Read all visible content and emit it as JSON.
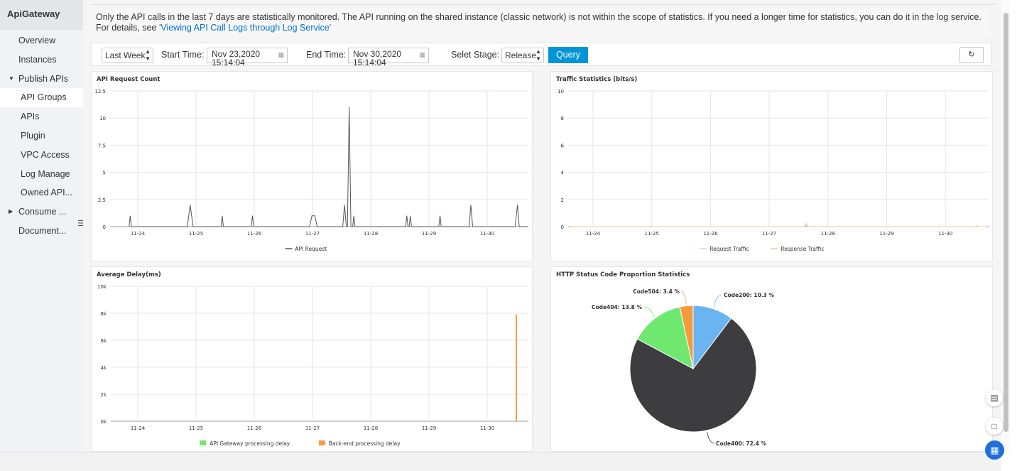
{
  "sidebar": {
    "title": "ApiGateway",
    "items": [
      {
        "label": "Overview"
      },
      {
        "label": "Instances"
      },
      {
        "label": "Publish APIs"
      },
      {
        "label": "API Groups"
      },
      {
        "label": "APIs"
      },
      {
        "label": "Plugin"
      },
      {
        "label": "VPC Access"
      },
      {
        "label": "Log Manage"
      },
      {
        "label": "Owned API..."
      },
      {
        "label": "Consume ..."
      },
      {
        "label": "Document..."
      }
    ]
  },
  "notice": {
    "text": "Only the API calls in the last 7 days are statistically monitored. The API running on the shared instance (classic network) is not within the scope of statistics. If you need a longer time for statistics, you can do it in the log service. For details, see ",
    "link": "'Viewing API Call Logs through Log Service'"
  },
  "toolbar": {
    "range": "Last Week",
    "start_label": "Start Time:",
    "start_date": "Nov 23,2020",
    "start_time": "15:14:04",
    "end_label": "End Time:",
    "end_date": "Nov 30,2020",
    "end_time": "15:14:04",
    "stage_label": "Selet Stage:",
    "stage": "Release",
    "query": "Query"
  },
  "icons": {
    "refresh": "refresh-icon",
    "calendar": "calendar-icon",
    "collapse": "collapse-icon",
    "feedback": "feedback-icon",
    "chat": "chat-icon",
    "apps": "apps-icon"
  },
  "colors": {
    "accent": "#0095d9",
    "api_request": "#555555",
    "request_traffic": "#b5e9b5",
    "response_traffic": "#f5c89a",
    "gw_delay": "#6ee86e",
    "backend_delay": "#ff9a3c",
    "code200": "#6bb4f2",
    "code400": "#3d3d40",
    "code404": "#6ee86e",
    "code504": "#f59a3c"
  },
  "chart_data": [
    {
      "type": "line",
      "title": "API Request Count",
      "x_ticks": [
        "11-24",
        "11-25",
        "11-26",
        "11-27",
        "11-28",
        "11-29",
        "11-30"
      ],
      "y_ticks": [
        "0",
        "2.5",
        "5",
        "7.5",
        "10",
        "12.5"
      ],
      "ylim": [
        0,
        12.5
      ],
      "series": [
        {
          "name": "API Request",
          "points": [
            [
              -0.15,
              0
            ],
            [
              -0.13,
              1
            ],
            [
              -0.11,
              0
            ],
            [
              0.85,
              0
            ],
            [
              0.9,
              2
            ],
            [
              0.95,
              0
            ],
            [
              1.43,
              0
            ],
            [
              1.45,
              1
            ],
            [
              1.47,
              0
            ],
            [
              1.95,
              0
            ],
            [
              1.97,
              1
            ],
            [
              1.99,
              0
            ],
            [
              2.95,
              0
            ],
            [
              2.99,
              1
            ],
            [
              3.04,
              1
            ],
            [
              3.08,
              0
            ],
            [
              3.52,
              0
            ],
            [
              3.55,
              2
            ],
            [
              3.58,
              0
            ],
            [
              3.6,
              0
            ],
            [
              3.63,
              11
            ],
            [
              3.66,
              0
            ],
            [
              3.69,
              0
            ],
            [
              3.71,
              1
            ],
            [
              3.73,
              0
            ],
            [
              4.6,
              0
            ],
            [
              4.62,
              1
            ],
            [
              4.64,
              0
            ],
            [
              4.66,
              0
            ],
            [
              4.68,
              1
            ],
            [
              4.7,
              0
            ],
            [
              5.17,
              0
            ],
            [
              5.19,
              1
            ],
            [
              5.21,
              0
            ],
            [
              5.69,
              0
            ],
            [
              5.72,
              2
            ],
            [
              5.75,
              0
            ],
            [
              6.48,
              0
            ],
            [
              6.52,
              2
            ],
            [
              6.55,
              0
            ],
            [
              6.7,
              0
            ]
          ]
        }
      ]
    },
    {
      "type": "line",
      "title": "Traffic Statistics (bits/s)",
      "x_ticks": [
        "11-24",
        "11-25",
        "11-26",
        "11-27",
        "11-28",
        "11-29",
        "11-30"
      ],
      "y_ticks": [
        "0",
        "2",
        "4",
        "6",
        "8",
        "10"
      ],
      "ylim": [
        0,
        10
      ],
      "series": [
        {
          "name": "Request Traffic",
          "points": [
            [
              -0.4,
              0
            ],
            [
              0.95,
              0
            ],
            [
              0.98,
              0.05
            ],
            [
              1.01,
              0
            ],
            [
              3.6,
              0
            ],
            [
              3.63,
              0.25
            ],
            [
              3.66,
              0
            ],
            [
              3.75,
              0
            ],
            [
              3.77,
              0.06
            ],
            [
              3.79,
              0
            ],
            [
              6.5,
              0
            ],
            [
              6.53,
              0.08
            ],
            [
              6.56,
              0
            ],
            [
              6.7,
              0
            ]
          ]
        },
        {
          "name": "Response Traffic",
          "points": [
            [
              -0.4,
              0
            ],
            [
              3.6,
              0
            ],
            [
              3.63,
              0.12
            ],
            [
              3.66,
              0
            ],
            [
              6.7,
              0
            ]
          ]
        }
      ]
    },
    {
      "type": "bar",
      "title": "Average Delay(ms)",
      "x_ticks": [
        "11-24",
        "11-25",
        "11-26",
        "11-27",
        "11-28",
        "11-29",
        "11-30"
      ],
      "y_ticks": [
        "0k",
        "2k",
        "4k",
        "6k",
        "8k",
        "10k"
      ],
      "ylim": [
        0,
        10000
      ],
      "series": [
        {
          "name": "API Gateway processing delay",
          "points": []
        },
        {
          "name": "Back-end processing delay",
          "points": [
            [
              6.5,
              7900
            ]
          ]
        }
      ]
    },
    {
      "type": "pie",
      "title": "HTTP Status Code Proportion Statistics",
      "slices": [
        {
          "label": "Code200: 10.3 %",
          "value": 10.3
        },
        {
          "label": "Code400: 72.4 %",
          "value": 72.4
        },
        {
          "label": "Code404: 13.8 %",
          "value": 13.8
        },
        {
          "label": "Code504: 3.4 %",
          "value": 3.4
        }
      ]
    }
  ]
}
